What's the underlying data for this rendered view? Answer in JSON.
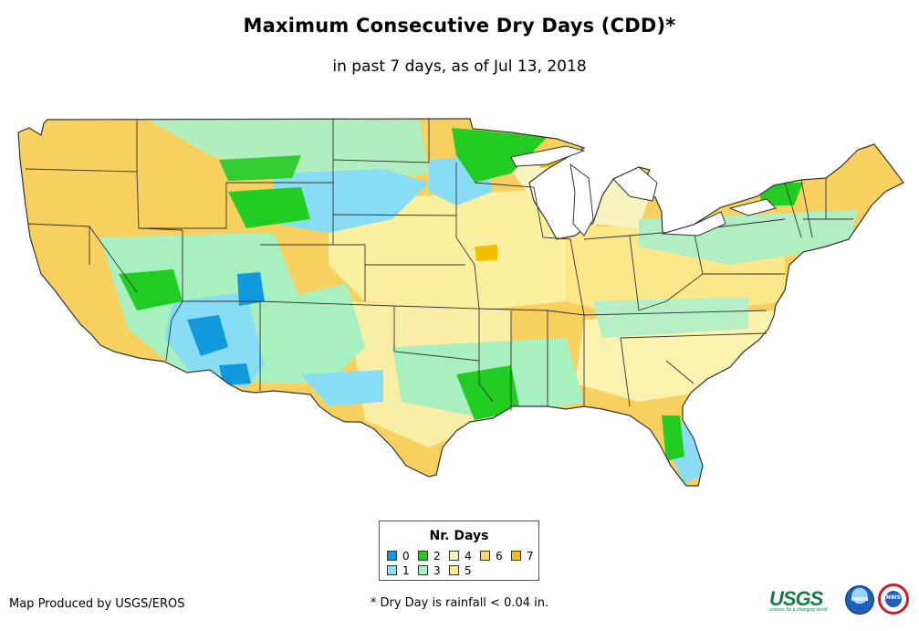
{
  "title": "Maximum Consecutive Dry Days (CDD)*",
  "subtitle": "in past 7 days, as of Jul 13, 2018",
  "legend": {
    "title": "Nr. Days",
    "items": [
      {
        "label": "0",
        "color": "#1199dd"
      },
      {
        "label": "1",
        "color": "#88ddf5"
      },
      {
        "label": "2",
        "color": "#22cc22"
      },
      {
        "label": "3",
        "color": "#a8f0c0"
      },
      {
        "label": "4",
        "color": "#f7f7c0"
      },
      {
        "label": "5",
        "color": "#fbec8c"
      },
      {
        "label": "6",
        "color": "#f8d668"
      },
      {
        "label": "7",
        "color": "#f2c000"
      }
    ]
  },
  "credit": "Map Produced by USGS/EROS",
  "footnote": "* Dry Day is rainfall < 0.04 in.",
  "logos": {
    "usgs": "USGS",
    "usgs_tagline": "science for a changing world",
    "noaa": "noaa",
    "nws": "NWS"
  },
  "map_colors": {
    "border": "#333333",
    "land_default": "#fbe38a"
  }
}
